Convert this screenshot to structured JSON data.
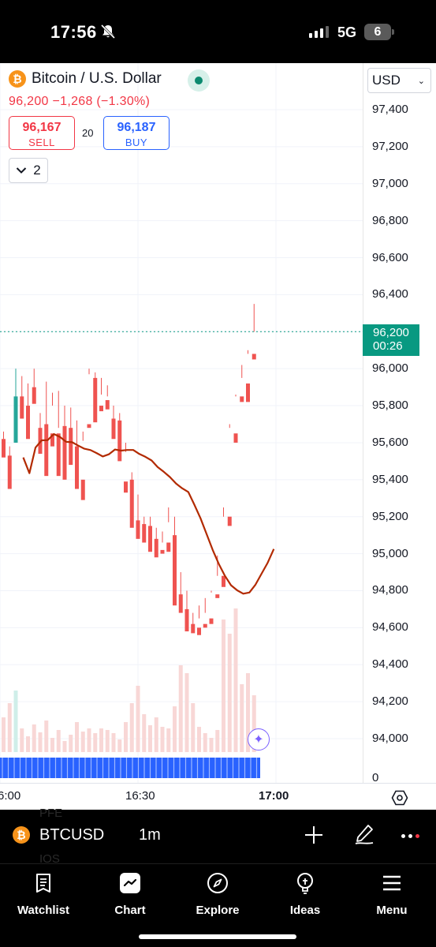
{
  "status_bar": {
    "time": "17:56",
    "network": "5G",
    "battery": "6"
  },
  "header": {
    "symbol_name": "Bitcoin / U.S. Dollar",
    "btc_glyph": "₿",
    "price_change": "96,200 −1,268 (−1.30%)",
    "sell": {
      "price": "96,167",
      "label": "SELL"
    },
    "buy": {
      "price": "96,187",
      "label": "BUY"
    },
    "spread": "20",
    "indicators_count": "2",
    "currency": "USD"
  },
  "last_price": {
    "price": "96,200",
    "countdown": "00:26"
  },
  "colors": {
    "up": "#26a69a",
    "down": "#ef5350",
    "ma": "#b22a00",
    "accent": "#2962ff"
  },
  "chart_data": {
    "type": "candlestick",
    "y_axis": {
      "ticks": [
        "97,400",
        "97,200",
        "97,000",
        "96,800",
        "96,600",
        "96,400",
        "96,200",
        "96,000",
        "95,800",
        "95,600",
        "95,400",
        "95,200",
        "95,000",
        "94,800",
        "94,600",
        "94,400",
        "94,200",
        "94,000"
      ],
      "range": [
        93900,
        97500
      ]
    },
    "x_axis": {
      "ticks": [
        "6:00",
        "16:30",
        "17:00"
      ]
    },
    "volume_axis_label": "0",
    "last_price_line": 96200,
    "candles": [
      [
        95620,
        95660,
        95620,
        95520
      ],
      [
        95530,
        95580,
        95380,
        95350
      ],
      [
        95600,
        96000,
        95600,
        95850
      ],
      [
        95850,
        95960,
        95840,
        95730
      ],
      [
        95800,
        95920,
        95710,
        95620
      ],
      [
        95900,
        96000,
        95900,
        95810
      ],
      [
        95680,
        95760,
        95630,
        95540
      ],
      [
        95700,
        95930,
        95700,
        95420
      ],
      [
        95650,
        95870,
        95800,
        95580
      ],
      [
        95650,
        95880,
        95680,
        95420
      ],
      [
        95690,
        95800,
        95690,
        95400
      ],
      [
        95680,
        95790,
        95590,
        95480
      ],
      [
        95580,
        95720,
        95410,
        95350
      ],
      [
        95400,
        95660,
        95610,
        95290
      ],
      [
        95700,
        96000,
        95970,
        95680
      ],
      [
        95950,
        95980,
        95750,
        95710
      ],
      [
        95800,
        95950,
        95860,
        95770
      ],
      [
        95830,
        95910,
        95850,
        95780
      ],
      [
        95730,
        95800,
        95700,
        95620
      ],
      [
        95720,
        95760,
        95510,
        95500
      ],
      [
        95390,
        95600,
        95550,
        95330
      ],
      [
        95400,
        95440,
        95220,
        95140
      ],
      [
        95180,
        95320,
        95120,
        95080
      ],
      [
        95160,
        95200,
        95080,
        95060
      ],
      [
        95150,
        95200,
        95060,
        95010
      ],
      [
        95080,
        95140,
        95040,
        94980
      ],
      [
        95020,
        95120,
        95060,
        95000
      ],
      [
        95060,
        95250,
        95170,
        95010
      ],
      [
        95100,
        95200,
        94760,
        94720
      ],
      [
        94780,
        94900,
        94700,
        94680
      ],
      [
        94700,
        94800,
        94620,
        94580
      ],
      [
        94620,
        94680,
        94590,
        94570
      ],
      [
        94600,
        94720,
        94650,
        94560
      ],
      [
        94620,
        94760,
        94680,
        94600
      ],
      [
        94650,
        94800,
        94790,
        94620
      ],
      [
        94780,
        94990,
        94880,
        94760
      ],
      [
        94880,
        95250,
        95200,
        94820
      ],
      [
        95200,
        95700,
        95680,
        95150
      ],
      [
        95650,
        95860,
        95850,
        95600
      ],
      [
        95850,
        96020,
        95950,
        95820
      ],
      [
        95920,
        96100,
        96080,
        95820
      ],
      [
        96080,
        96350,
        96200,
        96050
      ]
    ],
    "volume": [
      44,
      62,
      78,
      30,
      20,
      35,
      25,
      40,
      18,
      28,
      14,
      22,
      38,
      26,
      30,
      24,
      30,
      28,
      24,
      16,
      38,
      62,
      84,
      48,
      34,
      44,
      32,
      30,
      58,
      110,
      100,
      62,
      32,
      24,
      18,
      28,
      168,
      150,
      182,
      86,
      100,
      72
    ]
  },
  "symbol_toolbar": {
    "symbol": "BTCUSD",
    "interval": "1m",
    "ghost_1": "PFE",
    "ghost_2": "IOS"
  },
  "tabs": [
    {
      "label": "Watchlist",
      "icon": "watchlist-icon"
    },
    {
      "label": "Chart",
      "icon": "chart-icon"
    },
    {
      "label": "Explore",
      "icon": "compass-icon"
    },
    {
      "label": "Ideas",
      "icon": "lightbulb-icon"
    },
    {
      "label": "Menu",
      "icon": "menu-icon"
    }
  ]
}
